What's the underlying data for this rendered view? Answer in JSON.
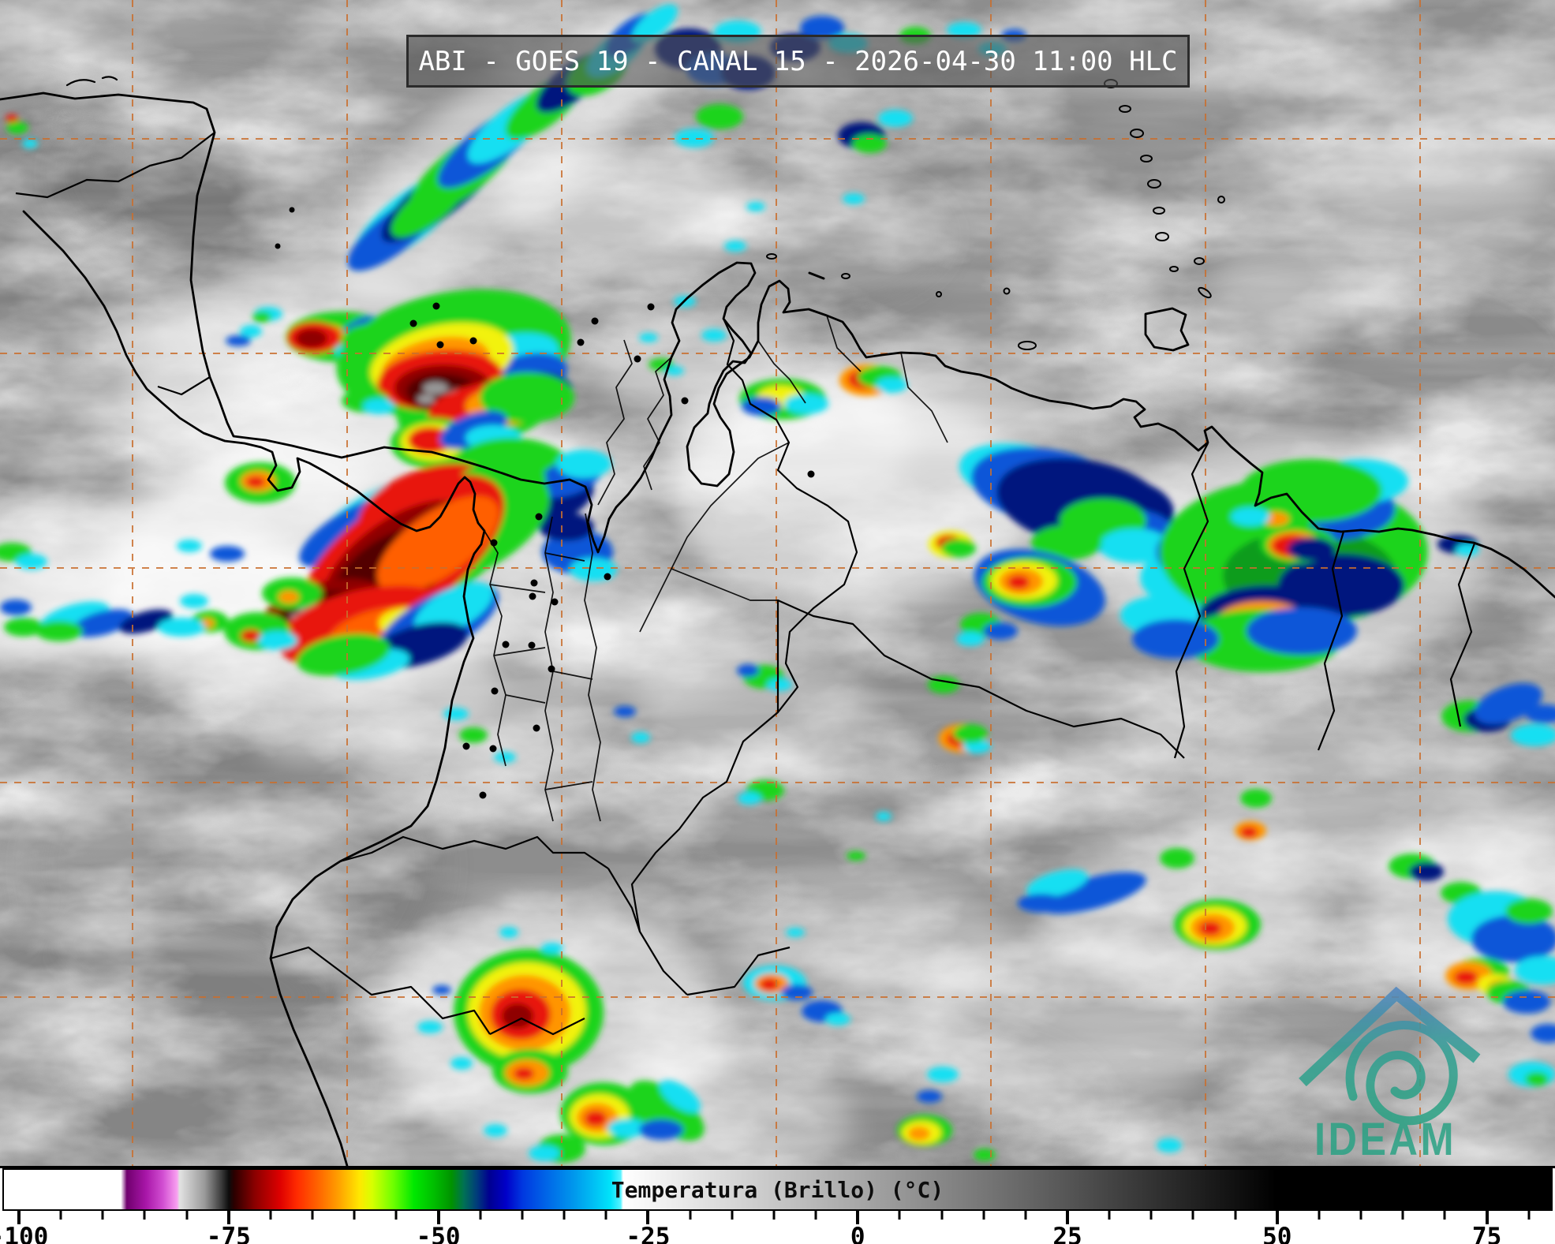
{
  "title": {
    "text": "ABI - GOES 19 - CANAL 15 - 2026-04-30 11:00 HLC"
  },
  "colorbar": {
    "label": "Temperatura (Brillo) (°C)",
    "units": "°C",
    "major_ticks": [
      -100,
      -75,
      -50,
      -25,
      0,
      25,
      50,
      75
    ],
    "minor_tick_step": 5,
    "minor_tick_range": [
      -100,
      80
    ],
    "gradient_stops": [
      [
        0.0,
        "#ffffff"
      ],
      [
        0.0756,
        "#ffffff"
      ],
      [
        0.0794,
        "#70006e"
      ],
      [
        0.0918,
        "#a816a8"
      ],
      [
        0.1027,
        "#d24ed2"
      ],
      [
        0.1119,
        "#f8a0f0"
      ],
      [
        0.1135,
        "#e2e2e2"
      ],
      [
        0.1297,
        "#9a9a9a"
      ],
      [
        0.1405,
        "#3c3c3c"
      ],
      [
        0.1454,
        "#0c0c0c"
      ],
      [
        0.1487,
        "#2a0000"
      ],
      [
        0.1622,
        "#8b0000"
      ],
      [
        0.1784,
        "#dd0000"
      ],
      [
        0.1892,
        "#ff2a00"
      ],
      [
        0.2055,
        "#ff6f00"
      ],
      [
        0.2163,
        "#ffa000"
      ],
      [
        0.2298,
        "#ffe800"
      ],
      [
        0.2379,
        "#d8ff00"
      ],
      [
        0.2514,
        "#70ff00"
      ],
      [
        0.265,
        "#00e800"
      ],
      [
        0.2785,
        "#00bc00"
      ],
      [
        0.2893,
        "#009200"
      ],
      [
        0.2974,
        "#007055"
      ],
      [
        0.3055,
        "#003d7a"
      ],
      [
        0.3137,
        "#000090"
      ],
      [
        0.3245,
        "#0000c8"
      ],
      [
        0.3353,
        "#0038e0"
      ],
      [
        0.3515,
        "#0068e8"
      ],
      [
        0.3678,
        "#0096ec"
      ],
      [
        0.3813,
        "#00c0f4"
      ],
      [
        0.3921,
        "#00e4fa"
      ],
      [
        0.3986,
        "#55f2ff"
      ],
      [
        0.4002,
        "#ffffff"
      ],
      [
        0.5516,
        "#a8a8a8"
      ],
      [
        0.6869,
        "#565656"
      ],
      [
        0.8221,
        "#000000"
      ],
      [
        1.0,
        "#000000"
      ]
    ]
  },
  "logo": {
    "text": "IDEAM",
    "teal": "#2aa184",
    "blue": "#4e86c0"
  },
  "map": {
    "graticule_color": "#c96f2e"
  }
}
